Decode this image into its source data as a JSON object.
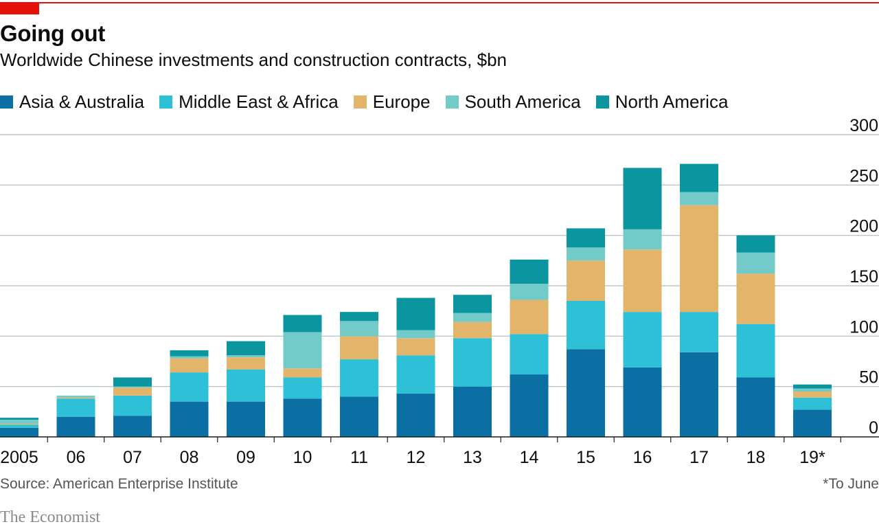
{
  "header": {
    "title": "Going out",
    "subtitle": "Worldwide Chinese investments and construction contracts, $bn"
  },
  "legend": [
    {
      "label": "Asia & Australia",
      "color": "#0b6fa4"
    },
    {
      "label": "Middle East & Africa",
      "color": "#2ec0d6"
    },
    {
      "label": "Europe",
      "color": "#e2b56a"
    },
    {
      "label": "South America",
      "color": "#73cbc9"
    },
    {
      "label": "North America",
      "color": "#0a959f"
    }
  ],
  "chart_data": {
    "type": "bar",
    "stacked": true,
    "categories": [
      "2005",
      "06",
      "07",
      "08",
      "09",
      "10",
      "11",
      "12",
      "13",
      "14",
      "15",
      "16",
      "17",
      "18",
      "19*"
    ],
    "series": [
      {
        "name": "Asia & Australia",
        "color": "#0b6fa4",
        "values": [
          9,
          20,
          21,
          35,
          35,
          38,
          40,
          43,
          50,
          62,
          87,
          69,
          84,
          59,
          27
        ]
      },
      {
        "name": "Middle East & Africa",
        "color": "#2ec0d6",
        "values": [
          3,
          18,
          20,
          29,
          32,
          21,
          37,
          38,
          48,
          40,
          48,
          55,
          40,
          53,
          12
        ]
      },
      {
        "name": "Europe",
        "color": "#e2b56a",
        "values": [
          1,
          1,
          8,
          14,
          12,
          9,
          23,
          17,
          16,
          34,
          40,
          62,
          106,
          50,
          6
        ]
      },
      {
        "name": "South America",
        "color": "#73cbc9",
        "values": [
          4,
          2,
          1,
          2,
          2,
          36,
          15,
          8,
          9,
          16,
          13,
          20,
          13,
          21,
          3
        ]
      },
      {
        "name": "North America",
        "color": "#0a959f",
        "values": [
          2,
          0,
          9,
          6,
          14,
          17,
          9,
          32,
          18,
          24,
          19,
          61,
          28,
          17,
          4
        ]
      }
    ],
    "yticks": [
      "300",
      "250",
      "200",
      "150",
      "100",
      "50",
      "0"
    ],
    "ytick_values": [
      300,
      250,
      200,
      150,
      100,
      50,
      0
    ],
    "ylim": [
      0,
      300
    ],
    "xlabel": "",
    "ylabel": "$bn",
    "grid": true,
    "legend_position": "top-left"
  },
  "footer": {
    "source": "Source: American Enterprise Institute",
    "footnote": "*To June",
    "brand": "The Economist"
  }
}
